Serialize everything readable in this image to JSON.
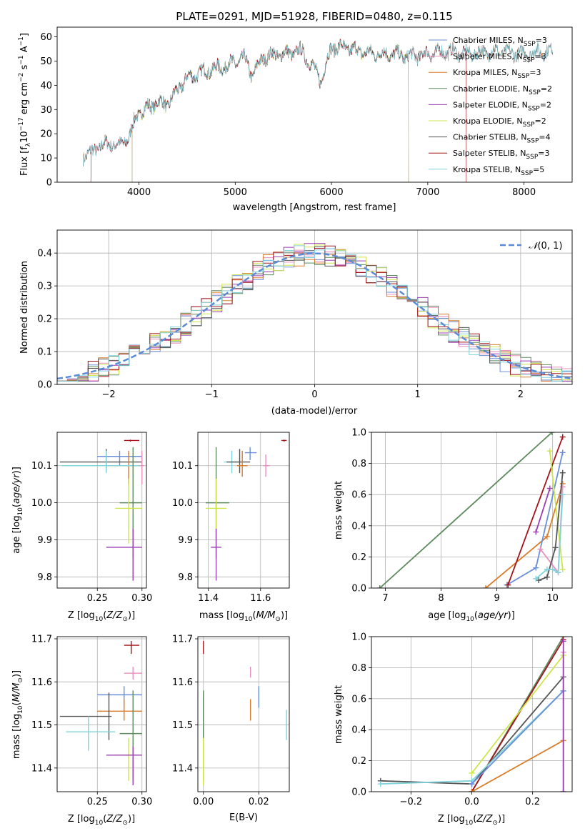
{
  "title": "PLATE=0291, MJD=51928, FIBERID=0480, z=0.115",
  "colors": {
    "Chabrier MILES": "#6a8fd8",
    "Salpeter MILES": "#e98fc0",
    "Kroupa MILES": "#d97c2a",
    "Chabrier ELODIE": "#5e8a5e",
    "Salpeter ELODIE": "#9b3fb3",
    "Kroupa ELODIE": "#cde54b",
    "Chabrier STELIB": "#555555",
    "Salpeter STELIB": "#a3141a",
    "Kroupa STELIB": "#7fd3dc",
    "normal_curve": "#5b8bd6",
    "grid": "#b0b0b0"
  },
  "chart_data": [
    {
      "id": "spectrum",
      "type": "line",
      "xlabel": "wavelength [Angstrom, rest frame]",
      "ylabel": "Flux [f_λ10^-17 erg cm^-2 s^-1 A^-1]",
      "xlim": [
        3150,
        8500
      ],
      "ylim": [
        0,
        64
      ],
      "xticks": [
        4000,
        5000,
        6000,
        7000,
        8000
      ],
      "yticks": [
        0,
        10,
        20,
        30,
        40,
        50,
        60
      ],
      "grid": false,
      "legend_position": "top-right",
      "legend": [
        "Chabrier MILES, N_SSP=3",
        "Salpeter MILES, N_SSP=3",
        "Kroupa MILES, N_SSP=3",
        "Chabrier ELODIE, N_SSP=2",
        "Salpeter ELODIE, N_SSP=2",
        "Kroupa ELODIE, N_SSP=2",
        "Chabrier STELIB, N_SSP=4",
        "Salpeter STELIB, N_SSP=3",
        "Kroupa STELIB, N_SSP=5"
      ],
      "continuum": [
        [
          3420,
          11
        ],
        [
          3500,
          12
        ],
        [
          3600,
          15
        ],
        [
          3700,
          16
        ],
        [
          3800,
          15
        ],
        [
          3900,
          19
        ],
        [
          3980,
          28
        ],
        [
          4100,
          31
        ],
        [
          4200,
          33
        ],
        [
          4300,
          32
        ],
        [
          4400,
          38
        ],
        [
          4500,
          43
        ],
        [
          4700,
          46
        ],
        [
          4900,
          48
        ],
        [
          5100,
          51
        ],
        [
          5175,
          44
        ],
        [
          5300,
          52
        ],
        [
          5500,
          53
        ],
        [
          5700,
          54
        ],
        [
          5893,
          42
        ],
        [
          6000,
          56
        ],
        [
          6200,
          55
        ],
        [
          6400,
          53
        ],
        [
          6600,
          53
        ],
        [
          6800,
          52
        ],
        [
          7000,
          53
        ],
        [
          7200,
          54
        ],
        [
          7400,
          53
        ],
        [
          7700,
          54
        ],
        [
          8000,
          53
        ],
        [
          8200,
          54
        ],
        [
          8300,
          54
        ]
      ]
    },
    {
      "id": "residuals",
      "type": "bar",
      "xlabel": "(data-model)/error",
      "ylabel": "Normed distribution",
      "xlim": [
        -2.5,
        2.5
      ],
      "ylim": [
        0,
        0.47
      ],
      "xticks": [
        -2,
        -1,
        0,
        1,
        2
      ],
      "yticks": [
        0.0,
        0.1,
        0.2,
        0.3,
        0.4
      ],
      "grid": true,
      "legend_position": "top-right",
      "legend": [
        "N(0,1)"
      ],
      "bin_width": 0.1
    },
    {
      "id": "age_vs_Z",
      "type": "scatter",
      "xlabel": "Z [log10(Z/Z⊙)]",
      "ylabel": "age [log10(age/yr)]",
      "xlim": [
        0.205,
        0.305
      ],
      "ylim": [
        9.77,
        10.19
      ],
      "xticks": [
        0.25,
        0.3
      ],
      "yticks": [
        9.8,
        9.9,
        10.0,
        10.1
      ],
      "grid": true,
      "points": [
        {
          "s": "Salpeter STELIB",
          "x": 0.287,
          "y": 10.168,
          "xe": [
            0.28,
            0.297
          ],
          "ye": [
            10.165,
            10.17
          ]
        },
        {
          "s": "Chabrier MILES",
          "x": 0.275,
          "y": 10.125,
          "xe": [
            0.25,
            0.3
          ],
          "ye": [
            10.1,
            10.14
          ]
        },
        {
          "s": "Chabrier STELIB",
          "x": 0.26,
          "y": 10.11,
          "xe": [
            0.208,
            0.3
          ],
          "ye": [
            10.085,
            10.145
          ]
        },
        {
          "s": "Kroupa MILES",
          "x": 0.285,
          "y": 10.1,
          "xe": [
            0.26,
            0.3
          ],
          "ye": [
            10.05,
            10.14
          ]
        },
        {
          "s": "Kroupa STELIB",
          "x": 0.26,
          "y": 10.1,
          "xe": [
            0.21,
            0.3
          ],
          "ye": [
            10.08,
            10.14
          ]
        },
        {
          "s": "Salpeter MILES",
          "x": 0.3,
          "y": 10.1,
          "xe": [
            0.298,
            0.302
          ],
          "ye": [
            10.05,
            10.14
          ]
        },
        {
          "s": "Chabrier ELODIE",
          "x": 0.29,
          "y": 10.0,
          "xe": [
            0.275,
            0.3
          ],
          "ye": [
            9.85,
            10.15
          ]
        },
        {
          "s": "Kroupa ELODIE",
          "x": 0.285,
          "y": 9.985,
          "xe": [
            0.27,
            0.3
          ],
          "ye": [
            9.89,
            10.065
          ]
        },
        {
          "s": "Salpeter ELODIE",
          "x": 0.29,
          "y": 9.88,
          "xe": [
            0.26,
            0.3
          ],
          "ye": [
            9.79,
            9.93
          ]
        }
      ]
    },
    {
      "id": "age_vs_mass",
      "type": "scatter",
      "xlabel": "mass [log10(M/M⊙)]",
      "ylabel": "",
      "xlim": [
        11.36,
        11.71
      ],
      "ylim": [
        9.77,
        10.19
      ],
      "xticks": [
        11.4,
        11.6
      ],
      "yticks": [
        9.8,
        9.9,
        10.0,
        10.1
      ],
      "grid": true,
      "points": [
        {
          "s": "Salpeter STELIB",
          "x": 11.69,
          "y": 10.168,
          "xe": [
            11.68,
            11.7
          ],
          "ye": [
            10.165,
            10.17
          ]
        },
        {
          "s": "Chabrier MILES",
          "x": 11.56,
          "y": 10.135,
          "xe": [
            11.54,
            11.585
          ],
          "ye": [
            10.115,
            10.15
          ]
        },
        {
          "s": "Kroupa STELIB",
          "x": 11.49,
          "y": 10.11,
          "xe": [
            11.46,
            11.52
          ],
          "ye": [
            10.08,
            10.14
          ]
        },
        {
          "s": "Chabrier STELIB",
          "x": 11.52,
          "y": 10.11,
          "xe": [
            11.47,
            11.56
          ],
          "ye": [
            10.08,
            10.145
          ]
        },
        {
          "s": "Kroupa MILES",
          "x": 11.53,
          "y": 10.1,
          "xe": [
            11.51,
            11.55
          ],
          "ye": [
            10.07,
            10.14
          ]
        },
        {
          "s": "Salpeter MILES",
          "x": 11.62,
          "y": 10.1,
          "xe": [
            11.61,
            11.635
          ],
          "ye": [
            10.07,
            10.13
          ]
        },
        {
          "s": "Chabrier ELODIE",
          "x": 11.43,
          "y": 10.0,
          "xe": [
            11.39,
            11.48
          ],
          "ye": [
            9.85,
            10.15
          ]
        },
        {
          "s": "Kroupa ELODIE",
          "x": 11.43,
          "y": 9.985,
          "xe": [
            11.39,
            11.47
          ],
          "ye": [
            9.89,
            10.065
          ]
        },
        {
          "s": "Salpeter ELODIE",
          "x": 11.43,
          "y": 9.88,
          "xe": [
            11.41,
            11.45
          ],
          "ye": [
            9.79,
            9.93
          ]
        }
      ]
    },
    {
      "id": "massweight_vs_age",
      "type": "line",
      "xlabel": "age [log10(age/yr)]",
      "ylabel": "mass weight",
      "xlim": [
        6.75,
        10.35
      ],
      "ylim": [
        0,
        1
      ],
      "xticks": [
        7,
        8,
        9,
        10
      ],
      "yticks": [
        0.0,
        0.2,
        0.4,
        0.6,
        0.8,
        1.0
      ],
      "grid": true,
      "series": [
        {
          "s": "Chabrier ELODIE",
          "x": [
            6.9,
            9.99
          ],
          "y": [
            0.0,
            1.0
          ]
        },
        {
          "s": "Kroupa MILES",
          "x": [
            8.8,
            9.9,
            10.18
          ],
          "y": [
            0.0,
            0.33,
            0.67
          ]
        },
        {
          "s": "Chabrier MILES",
          "x": [
            9.18,
            9.7,
            10.18
          ],
          "y": [
            0.02,
            0.13,
            0.87
          ]
        },
        {
          "s": "Salpeter STELIB",
          "x": [
            9.2,
            10.18
          ],
          "y": [
            0.02,
            0.97
          ]
        },
        {
          "s": "Salpeter ELODIE",
          "x": [
            9.7,
            9.95
          ],
          "y": [
            0.36,
            0.64
          ]
        },
        {
          "s": "Kroupa ELODIE",
          "x": [
            9.95,
            10.18
          ],
          "y": [
            0.88,
            0.12
          ]
        },
        {
          "s": "Salpeter MILES",
          "x": [
            9.78,
            10.1,
            10.18
          ],
          "y": [
            0.25,
            0.1,
            0.65
          ]
        },
        {
          "s": "Chabrier STELIB",
          "x": [
            9.75,
            9.9,
            10.05,
            10.18
          ],
          "y": [
            0.05,
            0.07,
            0.26,
            0.74
          ]
        },
        {
          "s": "Kroupa STELIB",
          "x": [
            9.7,
            9.9,
            10.0,
            10.1,
            10.18
          ],
          "y": [
            0.06,
            0.12,
            0.12,
            0.1,
            0.6
          ]
        }
      ]
    },
    {
      "id": "mass_vs_Z",
      "type": "scatter",
      "xlabel": "Z [log10(Z/Z⊙)]",
      "ylabel": "mass [log10(M/M⊙)]",
      "xlim": [
        0.205,
        0.305
      ],
      "ylim": [
        11.345,
        11.705
      ],
      "xticks": [
        0.25,
        0.3
      ],
      "yticks": [
        11.4,
        11.5,
        11.6,
        11.7
      ],
      "grid": true,
      "points": [
        {
          "s": "Salpeter STELIB",
          "x": 0.288,
          "y": 11.685,
          "xe": [
            0.28,
            0.297
          ],
          "ye": [
            11.665,
            11.695
          ]
        },
        {
          "s": "Salpeter MILES",
          "x": 0.29,
          "y": 11.62,
          "xe": [
            0.28,
            0.3
          ],
          "ye": [
            11.605,
            11.635
          ]
        },
        {
          "s": "Chabrier MILES",
          "x": 0.28,
          "y": 11.57,
          "xe": [
            0.25,
            0.3
          ],
          "ye": [
            11.54,
            11.59
          ]
        },
        {
          "s": "Kroupa MILES",
          "x": 0.28,
          "y": 11.532,
          "xe": [
            0.25,
            0.3
          ],
          "ye": [
            11.51,
            11.56
          ]
        },
        {
          "s": "Chabrier STELIB",
          "x": 0.263,
          "y": 11.52,
          "xe": [
            0.208,
            0.266
          ],
          "ye": [
            11.465,
            11.575
          ]
        },
        {
          "s": "Kroupa STELIB",
          "x": 0.24,
          "y": 11.484,
          "xe": [
            0.215,
            0.27
          ],
          "ye": [
            11.44,
            11.52
          ]
        },
        {
          "s": "Chabrier ELODIE",
          "x": 0.29,
          "y": 11.48,
          "xe": [
            0.275,
            0.3
          ],
          "ye": [
            11.37,
            11.58
          ]
        },
        {
          "s": "Kroupa ELODIE",
          "x": 0.285,
          "y": 11.43,
          "xe": [
            0.27,
            0.3
          ],
          "ye": [
            11.37,
            11.47
          ]
        },
        {
          "s": "Salpeter ELODIE",
          "x": 0.29,
          "y": 11.43,
          "xe": [
            0.26,
            0.3
          ],
          "ye": [
            11.36,
            11.45
          ]
        }
      ]
    },
    {
      "id": "mass_vs_EBV",
      "type": "scatter",
      "xlabel": "E(B-V)",
      "ylabel": "",
      "xlim": [
        -0.002,
        0.031
      ],
      "ylim": [
        11.345,
        11.705
      ],
      "xticks": [
        0.0,
        0.02
      ],
      "yticks": [
        11.4,
        11.5,
        11.6,
        11.7
      ],
      "grid": true,
      "points": [
        {
          "s": "Salpeter STELIB",
          "x": 0.0,
          "y": 11.685,
          "xe": [
            0.0,
            0.0
          ],
          "ye": [
            11.665,
            11.695
          ]
        },
        {
          "s": "Salpeter MILES",
          "x": 0.017,
          "y": 11.62,
          "xe": [
            0.017,
            0.017
          ],
          "ye": [
            11.61,
            11.635
          ]
        },
        {
          "s": "Chabrier MILES",
          "x": 0.02,
          "y": 11.565,
          "xe": [
            0.02,
            0.02
          ],
          "ye": [
            11.54,
            11.59
          ]
        },
        {
          "s": "Kroupa MILES",
          "x": 0.017,
          "y": 11.535,
          "xe": [
            0.017,
            0.017
          ],
          "ye": [
            11.51,
            11.56
          ]
        },
        {
          "s": "Chabrier STELIB",
          "x": 0.0,
          "y": 11.52,
          "xe": [
            0.0,
            0.0
          ],
          "ye": [
            11.465,
            11.575
          ]
        },
        {
          "s": "Kroupa STELIB",
          "x": 0.03,
          "y": 11.5,
          "xe": [
            0.03,
            0.03
          ],
          "ye": [
            11.465,
            11.535
          ]
        },
        {
          "s": "Chabrier ELODIE",
          "x": 0.0,
          "y": 11.48,
          "xe": [
            0.0,
            0.0
          ],
          "ye": [
            11.37,
            11.58
          ]
        },
        {
          "s": "Kroupa ELODIE",
          "x": 0.0,
          "y": 11.42,
          "xe": [
            0.0,
            0.0
          ],
          "ye": [
            11.36,
            11.47
          ]
        }
      ]
    },
    {
      "id": "massweight_vs_Z",
      "type": "line",
      "xlabel": "Z [log10(Z/Z⊙)]",
      "ylabel": "mass weight",
      "xlim": [
        -0.33,
        0.33
      ],
      "ylim": [
        0,
        1
      ],
      "xticks": [
        -0.2,
        0.0,
        0.2
      ],
      "yticks": [
        0.0,
        0.2,
        0.4,
        0.6,
        0.8,
        1.0
      ],
      "grid": true,
      "series": [
        {
          "s": "Chabrier ELODIE",
          "x": [
            0.0,
            0.301
          ],
          "y": [
            0.0,
            1.0
          ]
        },
        {
          "s": "Salpeter STELIB",
          "x": [
            0.0,
            0.301
          ],
          "y": [
            0.0,
            0.98
          ]
        },
        {
          "s": "Kroupa ELODIE",
          "x": [
            0.0,
            0.301
          ],
          "y": [
            0.12,
            0.88
          ]
        },
        {
          "s": "Chabrier STELIB",
          "x": [
            -0.3,
            0.0,
            0.301
          ],
          "y": [
            0.07,
            0.05,
            0.74
          ]
        },
        {
          "s": "Kroupa STELIB",
          "x": [
            -0.3,
            0.0,
            0.301
          ],
          "y": [
            0.05,
            0.07,
            0.65
          ]
        },
        {
          "s": "Chabrier MILES",
          "x": [
            0.0,
            0.301
          ],
          "y": [
            0.05,
            0.65
          ]
        },
        {
          "s": "Kroupa MILES",
          "x": [
            0.0,
            0.301
          ],
          "y": [
            0.0,
            0.33
          ]
        },
        {
          "s": "Salpeter MILES",
          "x": [
            0.301,
            0.301
          ],
          "y": [
            0.0,
            0.9
          ]
        },
        {
          "s": "Salpeter ELODIE",
          "x": [
            0.301,
            0.301
          ],
          "y": [
            0.0,
            0.97
          ]
        }
      ]
    }
  ]
}
